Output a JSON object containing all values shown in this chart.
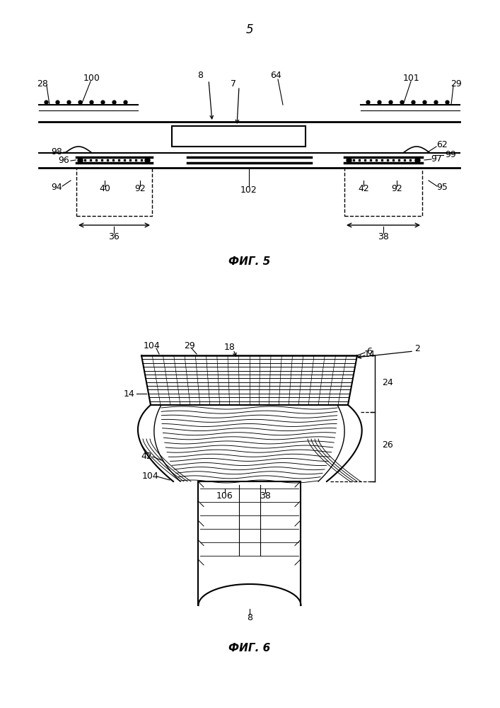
{
  "bg_color": "#ffffff",
  "fig_width": 7.07,
  "fig_height": 10.0,
  "page_number": "5",
  "fig5_label": "ФИГ. 5",
  "fig6_label": "ФИГ. 6"
}
